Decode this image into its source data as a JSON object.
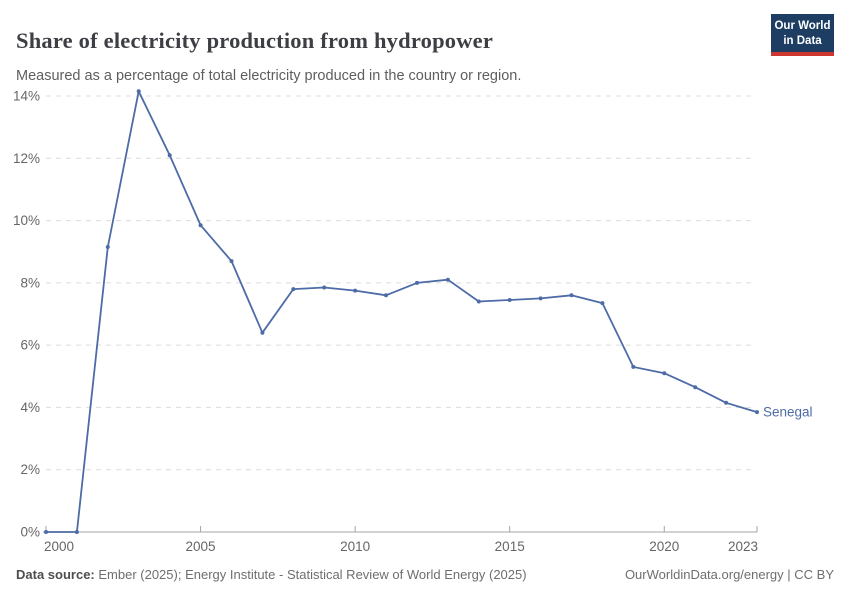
{
  "header": {
    "title": "Share of electricity production from hydropower",
    "subtitle": "Measured as a percentage of total electricity produced in the country or region.",
    "logo": {
      "line1": "Our World",
      "line2": "in Data"
    }
  },
  "chart_data": {
    "type": "line",
    "title": "Share of electricity production from hydropower",
    "xlabel": "",
    "ylabel": "",
    "x": [
      2000,
      2001,
      2002,
      2003,
      2004,
      2005,
      2006,
      2007,
      2008,
      2009,
      2010,
      2011,
      2012,
      2013,
      2014,
      2015,
      2016,
      2017,
      2018,
      2019,
      2020,
      2021,
      2022,
      2023
    ],
    "series": [
      {
        "name": "Senegal",
        "color": "#4d6ba6",
        "values": [
          0,
          0,
          9.15,
          14.15,
          12.1,
          9.85,
          8.7,
          6.4,
          7.8,
          7.85,
          7.75,
          7.6,
          8.0,
          8.1,
          7.4,
          7.45,
          7.5,
          7.6,
          7.35,
          5.3,
          5.1,
          4.65,
          4.15,
          3.85
        ]
      }
    ],
    "xlim": [
      2000,
      2023
    ],
    "ylim": [
      0,
      14
    ],
    "yticks": [
      0,
      2,
      4,
      6,
      8,
      10,
      12,
      14
    ],
    "ytick_suffix": "%",
    "xticks": [
      2000,
      2005,
      2010,
      2015,
      2020,
      2023
    ],
    "grid": "horizontal-dashed",
    "legend_position": "end-of-line",
    "end_label": "Senegal"
  },
  "footer": {
    "source_label": "Data source:",
    "source_text": " Ember (2025); Energy Institute - Statistical Review of World Energy (2025)",
    "credit": "OurWorldinData.org/energy | CC BY"
  },
  "colors": {
    "series_blue": "#4d6ba6",
    "gridline": "#dcdcdc",
    "axis": "#a5a5a5",
    "tick_label": "#666666",
    "logo_bg": "#1d3d63",
    "logo_bar": "#cd3730"
  }
}
